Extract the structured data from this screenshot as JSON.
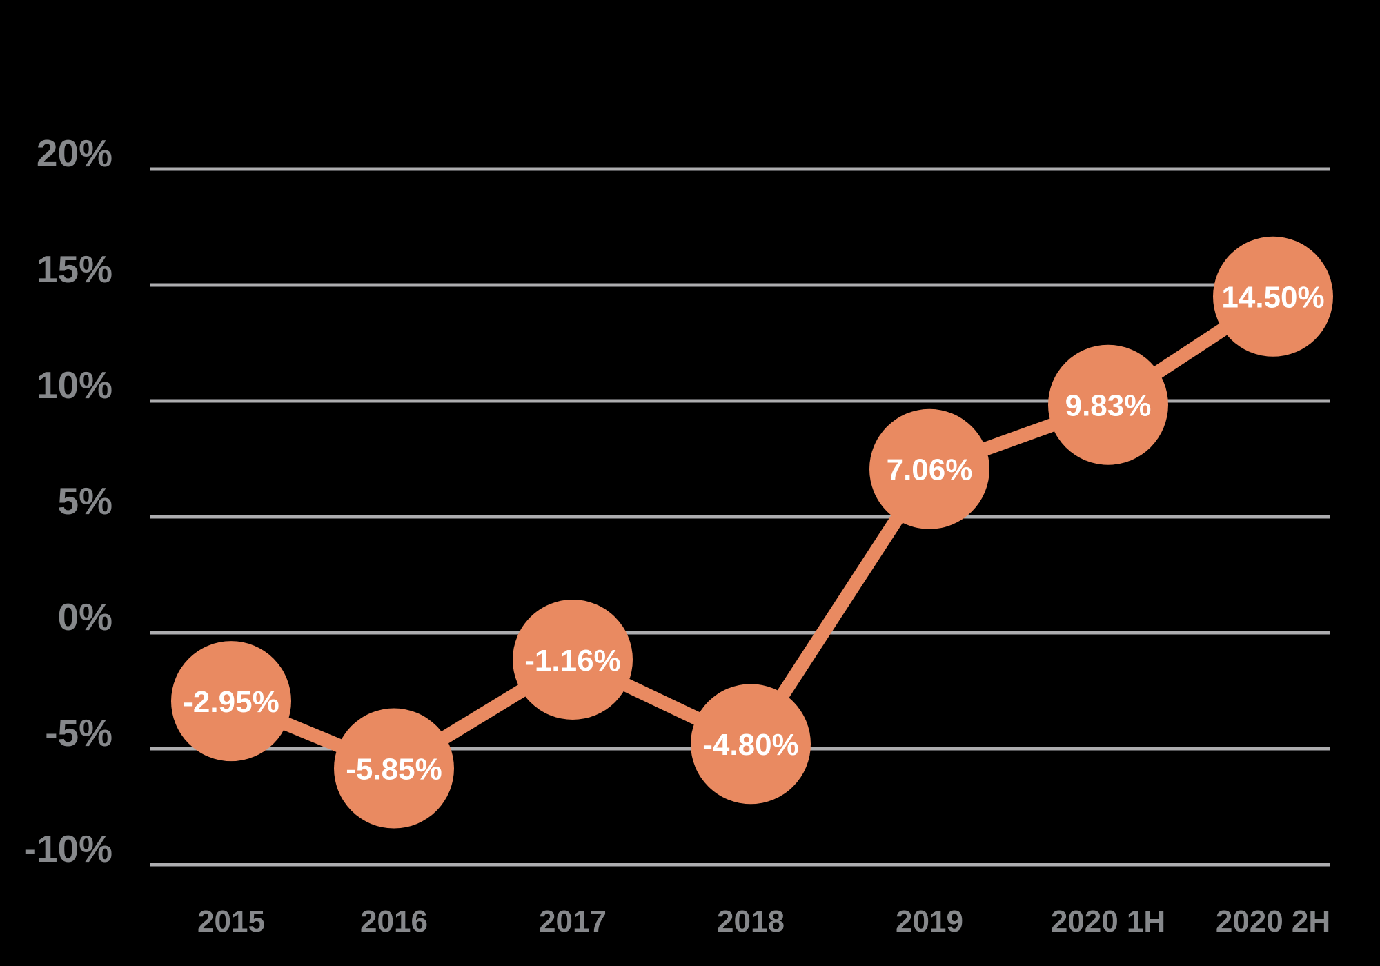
{
  "chart_data": {
    "type": "line",
    "title": "",
    "xlabel": "",
    "ylabel": "",
    "categories": [
      "2015",
      "2016",
      "2017",
      "2018",
      "2019",
      "2020 1H",
      "2020 2H"
    ],
    "values": [
      -2.95,
      -5.85,
      -1.16,
      -4.8,
      7.06,
      9.83,
      14.5
    ],
    "data_labels": [
      "-2.95%",
      "-5.85%",
      "-1.16%",
      "-4.80%",
      "7.06%",
      "9.83%",
      "14.50%"
    ],
    "y_axis": {
      "min": -10,
      "max": 20,
      "ticks": [
        20,
        15,
        10,
        5,
        0,
        -5,
        -10
      ],
      "tick_labels": [
        "20%",
        "15%",
        "10%",
        "5%",
        "0%",
        "-5%",
        "-10%"
      ]
    },
    "grid": true,
    "legend": false,
    "marker_style": "large-circle-with-label",
    "colors": {
      "background": "#000000",
      "series": "#E98A61",
      "data_label_text": "#FFFFFF",
      "axis_text": "#86888B",
      "gridline": "#ADADAF"
    }
  }
}
